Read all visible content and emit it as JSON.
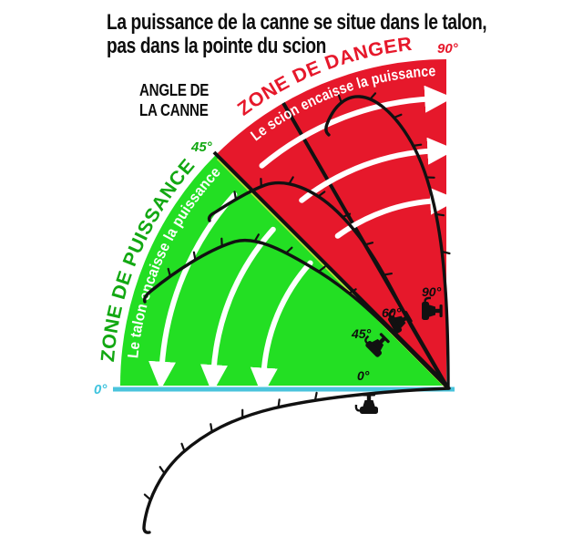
{
  "title": {
    "line1": "La puissance de la canne se situe dans le talon,",
    "line2": "pas dans la pointe du scion"
  },
  "axis_caption": {
    "line1": "ANGLE DE",
    "line2": "LA CANNE"
  },
  "zones": {
    "power": {
      "title": "ZONE DE PUISSANCE",
      "subtitle": "Le talon encaisse la puissance",
      "fill": "#23DF23",
      "title_color": "#12A812"
    },
    "danger": {
      "title": "ZONE DE DANGER",
      "subtitle": "Le scion encaisse la puissance",
      "fill": "#E6182B",
      "title_color": "#E6182B"
    }
  },
  "angle_scale": {
    "origin": "0°",
    "origin_color": "#3FC4DE",
    "mid": "45°",
    "mid_color": "#12A812",
    "top": "90°",
    "top_color": "#E6182B"
  },
  "rod_labels": [
    "0°",
    "45°",
    "60°",
    "90°"
  ],
  "baseline_color": "#4AC4DC",
  "boundary_edge_color": "#C3E23A",
  "line_color": "#111111"
}
